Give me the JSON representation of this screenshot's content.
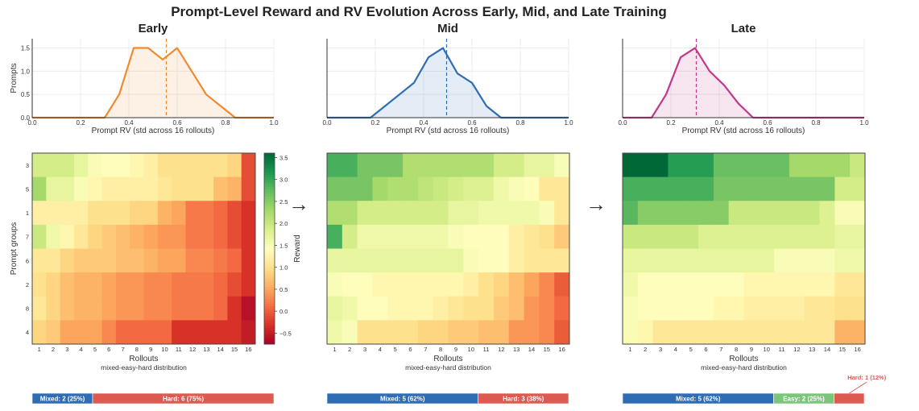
{
  "title": "Prompt-Level Reward and RV Evolution Across Early, Mid, and Late Training",
  "colorbar": {
    "label": "Reward",
    "range": [
      -0.75,
      3.6
    ],
    "ticks": [
      "3.5",
      "3.0",
      "2.5",
      "2.0",
      "1.5",
      "1.0",
      "0.5",
      "0.0",
      "−0.5"
    ],
    "tick_values": [
      3.5,
      3.0,
      2.5,
      2.0,
      1.5,
      1.0,
      0.5,
      0.0,
      -0.5
    ]
  },
  "arrow_glyph": "→",
  "chart_data": [
    {
      "type": "area",
      "title": "Early",
      "xlabel": "Prompt RV (std across 16 rollouts)",
      "ylabel": "Prompts",
      "xlim": [
        0.0,
        1.0
      ],
      "ylim": [
        0.0,
        1.7
      ],
      "xticks": [
        "0.0",
        "0.2",
        "0.4",
        "0.6",
        "0.8",
        "1.0"
      ],
      "yticks": [
        "0.0",
        "0.5",
        "1.0",
        "1.5"
      ],
      "color": "#f08a2e",
      "x": [
        0.0,
        0.06,
        0.12,
        0.18,
        0.24,
        0.3,
        0.36,
        0.42,
        0.48,
        0.54,
        0.6,
        0.66,
        0.72,
        0.78,
        0.84,
        0.9,
        0.96,
        1.0
      ],
      "y": [
        0,
        0,
        0,
        0,
        0,
        0,
        0.5,
        1.5,
        1.5,
        1.25,
        1.5,
        1.0,
        0.5,
        0.25,
        0,
        0,
        0,
        0
      ],
      "mean_line": 0.555
    },
    {
      "type": "area",
      "title": "Mid",
      "xlabel": "Prompt RV (std across 16 rollouts)",
      "ylabel": "",
      "xlim": [
        0.0,
        1.0
      ],
      "ylim": [
        0.0,
        1.7
      ],
      "xticks": [
        "0.0",
        "0.2",
        "0.4",
        "0.6",
        "0.8",
        "1.0"
      ],
      "yticks": [],
      "color": "#2e6db4",
      "x": [
        0.0,
        0.06,
        0.12,
        0.18,
        0.24,
        0.3,
        0.36,
        0.42,
        0.48,
        0.54,
        0.6,
        0.66,
        0.72,
        0.78,
        0.84,
        0.9,
        0.96,
        1.0
      ],
      "y": [
        0,
        0,
        0,
        0,
        0.25,
        0.5,
        0.75,
        1.3,
        1.5,
        0.95,
        0.75,
        0.25,
        0,
        0,
        0,
        0,
        0,
        0
      ],
      "mean_line": 0.495
    },
    {
      "type": "area",
      "title": "Late",
      "xlabel": "Prompt RV (std across 16 rollouts)",
      "ylabel": "",
      "xlim": [
        0.0,
        1.0
      ],
      "ylim": [
        0.0,
        1.7
      ],
      "xticks": [
        "0.0",
        "0.2",
        "0.4",
        "0.6",
        "0.8",
        "1.0"
      ],
      "yticks": [],
      "color": "#c2388a",
      "x": [
        0.0,
        0.06,
        0.12,
        0.18,
        0.24,
        0.3,
        0.36,
        0.42,
        0.48,
        0.54,
        0.6,
        0.66,
        0.72,
        0.78,
        0.84,
        0.9,
        0.96,
        1.0
      ],
      "y": [
        0,
        0,
        0,
        0.5,
        1.3,
        1.5,
        1.0,
        0.7,
        0.3,
        0,
        0,
        0,
        0,
        0,
        0,
        0,
        0,
        0
      ],
      "mean_line": 0.305
    },
    {
      "type": "heatmap",
      "title": "",
      "xlabel": "Rollouts",
      "sublabel": "mixed-easy-hard distribution",
      "ylabel": "Prompt groups",
      "x": [
        "1",
        "2",
        "3",
        "4",
        "5",
        "6",
        "7",
        "8",
        "9",
        "10",
        "11",
        "12",
        "13",
        "14",
        "15",
        "16"
      ],
      "y": [
        "3",
        "5",
        "1",
        "7",
        "6",
        "2",
        "8",
        "4"
      ],
      "values": [
        [
          1.9,
          1.9,
          1.9,
          1.7,
          1.5,
          1.4,
          1.4,
          1.3,
          1.2,
          1.0,
          1.0,
          1.0,
          1.0,
          1.0,
          0.9,
          -0.1
        ],
        [
          2.3,
          1.7,
          1.7,
          1.5,
          1.3,
          1.2,
          1.2,
          1.2,
          1.2,
          1.1,
          1.0,
          1.0,
          1.0,
          0.7,
          0.6,
          -0.1
        ],
        [
          1.2,
          1.2,
          1.2,
          1.2,
          1.0,
          1.0,
          1.0,
          0.9,
          0.9,
          0.6,
          0.5,
          0.2,
          0.2,
          0.1,
          -0.1,
          -0.3
        ],
        [
          2.0,
          1.6,
          1.3,
          1.1,
          0.9,
          0.8,
          0.7,
          0.6,
          0.5,
          0.4,
          0.4,
          0.2,
          0.2,
          0.1,
          -0.1,
          -0.3
        ],
        [
          1.1,
          1.1,
          0.9,
          0.8,
          0.8,
          0.8,
          0.7,
          0.7,
          0.6,
          0.5,
          0.5,
          0.3,
          0.3,
          0.2,
          0.1,
          -0.3
        ],
        [
          1.0,
          0.9,
          0.7,
          0.6,
          0.6,
          0.5,
          0.4,
          0.4,
          0.3,
          0.3,
          0.2,
          0.2,
          0.2,
          0.1,
          -0.1,
          -0.3
        ],
        [
          1.1,
          0.9,
          0.7,
          0.6,
          0.6,
          0.5,
          0.4,
          0.4,
          0.3,
          0.3,
          0.2,
          0.2,
          0.2,
          0.1,
          -0.3,
          -0.6
        ],
        [
          0.9,
          0.8,
          0.5,
          0.5,
          0.5,
          0.3,
          0.1,
          0.1,
          0.1,
          0.1,
          -0.3,
          -0.3,
          -0.3,
          -0.3,
          -0.3,
          -0.5
        ]
      ]
    },
    {
      "type": "heatmap",
      "title": "",
      "xlabel": "Rollouts",
      "sublabel": "mixed-easy-hard distribution",
      "ylabel": "",
      "x": [
        "1",
        "2",
        "3",
        "4",
        "5",
        "6",
        "7",
        "8",
        "9",
        "10",
        "11",
        "12",
        "13",
        "14",
        "15",
        "16"
      ],
      "y": [
        "3",
        "5",
        "1",
        "7",
        "6",
        "2",
        "8",
        "4"
      ],
      "values": [
        [
          2.9,
          2.9,
          2.6,
          2.6,
          2.6,
          2.2,
          2.2,
          2.2,
          2.2,
          2.2,
          2.2,
          1.9,
          1.9,
          1.7,
          1.7,
          1.5
        ],
        [
          2.6,
          2.6,
          2.6,
          2.3,
          2.2,
          2.2,
          2.1,
          2.0,
          1.9,
          1.8,
          1.8,
          1.6,
          1.5,
          1.4,
          1.1,
          1.1
        ],
        [
          2.2,
          2.2,
          1.9,
          1.9,
          1.9,
          1.9,
          1.9,
          1.9,
          1.7,
          1.7,
          1.6,
          1.6,
          1.6,
          1.6,
          1.5,
          1.1
        ],
        [
          2.9,
          1.9,
          1.6,
          1.6,
          1.6,
          1.6,
          1.6,
          1.6,
          1.5,
          1.4,
          1.4,
          1.4,
          1.2,
          1.1,
          1.0,
          0.8
        ],
        [
          1.7,
          1.7,
          1.7,
          1.7,
          1.7,
          1.7,
          1.7,
          1.7,
          1.7,
          1.5,
          1.4,
          1.4,
          1.2,
          1.1,
          1.1,
          1.1
        ],
        [
          1.5,
          1.4,
          1.4,
          1.3,
          1.3,
          1.3,
          1.3,
          1.3,
          1.3,
          1.2,
          1.0,
          0.9,
          0.7,
          0.5,
          0.3,
          0.0
        ],
        [
          1.7,
          1.6,
          1.4,
          1.4,
          1.3,
          1.3,
          1.3,
          1.2,
          1.1,
          1.0,
          1.0,
          0.8,
          0.7,
          0.4,
          0.3,
          0.1
        ],
        [
          1.6,
          1.5,
          1.0,
          1.0,
          1.0,
          1.0,
          0.9,
          0.9,
          0.8,
          0.8,
          0.7,
          0.7,
          0.4,
          0.4,
          0.3,
          0.0
        ]
      ]
    },
    {
      "type": "heatmap",
      "title": "",
      "xlabel": "Rollouts",
      "sublabel": "mixed-easy-hard distribution",
      "ylabel": "",
      "x": [
        "1",
        "2",
        "3",
        "4",
        "5",
        "6",
        "7",
        "8",
        "9",
        "10",
        "11",
        "12",
        "13",
        "14",
        "15",
        "16"
      ],
      "y": [
        "3",
        "5",
        "1",
        "7",
        "6",
        "2",
        "8",
        "4"
      ],
      "values": [
        [
          3.6,
          3.6,
          3.6,
          3.1,
          3.1,
          3.1,
          2.7,
          2.7,
          2.7,
          2.7,
          2.7,
          2.3,
          2.3,
          2.3,
          2.3,
          2.0
        ],
        [
          2.9,
          2.9,
          2.9,
          2.9,
          2.9,
          2.9,
          2.6,
          2.6,
          2.6,
          2.6,
          2.6,
          2.6,
          2.6,
          2.6,
          1.9,
          1.9
        ],
        [
          2.8,
          2.5,
          2.5,
          2.5,
          2.5,
          2.5,
          2.5,
          2.0,
          2.0,
          2.0,
          2.0,
          2.0,
          2.0,
          1.8,
          1.5,
          1.5
        ],
        [
          2.0,
          2.0,
          2.0,
          2.0,
          2.0,
          1.8,
          1.8,
          1.8,
          1.8,
          1.8,
          1.8,
          1.8,
          1.8,
          1.8,
          1.7,
          1.7
        ],
        [
          1.7,
          1.7,
          1.7,
          1.7,
          1.7,
          1.7,
          1.7,
          1.7,
          1.7,
          1.7,
          1.5,
          1.5,
          1.5,
          1.5,
          1.6,
          1.6
        ],
        [
          1.6,
          1.4,
          1.4,
          1.4,
          1.4,
          1.4,
          1.4,
          1.4,
          1.3,
          1.3,
          1.3,
          1.3,
          1.3,
          1.3,
          1.1,
          1.1
        ],
        [
          1.5,
          1.4,
          1.4,
          1.4,
          1.4,
          1.4,
          1.3,
          1.3,
          1.2,
          1.2,
          1.2,
          1.2,
          1.1,
          1.1,
          1.0,
          1.0
        ],
        [
          1.5,
          1.3,
          1.1,
          1.1,
          1.1,
          1.1,
          1.1,
          1.1,
          1.1,
          1.1,
          1.1,
          1.1,
          1.1,
          1.1,
          0.6,
          0.6
        ]
      ]
    },
    {
      "type": "bar",
      "title": "",
      "orientation": "horizontal-stacked",
      "segments": [
        {
          "label": "Mixed: 2 (25%)",
          "value": 2,
          "color": "#2e6db4"
        },
        {
          "label": "Hard: 6 (75%)",
          "value": 6,
          "color": "#de5a50"
        }
      ]
    },
    {
      "type": "bar",
      "title": "",
      "orientation": "horizontal-stacked",
      "segments": [
        {
          "label": "Mixed: 5 (62%)",
          "value": 5,
          "color": "#2e6db4"
        },
        {
          "label": "Hard: 3 (38%)",
          "value": 3,
          "color": "#de5a50"
        }
      ]
    },
    {
      "type": "bar",
      "title": "",
      "orientation": "horizontal-stacked",
      "segments": [
        {
          "label": "Mixed: 5 (62%)",
          "value": 5,
          "color": "#2e6db4"
        },
        {
          "label": "Easy: 2 (25%)",
          "value": 2,
          "color": "#7cc67b"
        },
        {
          "label": "Hard: 1 (12%)",
          "value": 1,
          "color": "#de5a50"
        }
      ],
      "annotation": "Hard: 1 (12%)"
    }
  ]
}
